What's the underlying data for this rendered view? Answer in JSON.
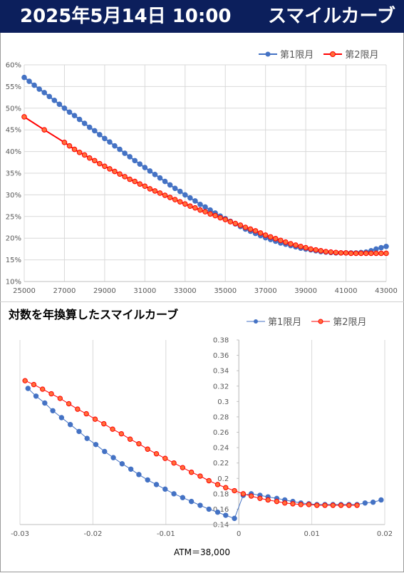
{
  "header": {
    "date": "2025年5月14日 10:00",
    "title": "スマイルカーブ"
  },
  "chart2_title": "対数を年換算したスマイルカーブ",
  "atm_label": "ATM＝38,000",
  "colors": {
    "series1": "#4472c4",
    "series2": "#ff0000",
    "series2_fill": "#ff6f3a",
    "header_bg": "#0c1f5c"
  },
  "chart_data": [
    {
      "type": "line",
      "title": "",
      "legend_position": "top-right",
      "grid": true,
      "x_ticks": [
        "25000",
        "27000",
        "29000",
        "31000",
        "33000",
        "35000",
        "37000",
        "39000",
        "41000",
        "43000"
      ],
      "y_ticks": [
        "10%",
        "15%",
        "20%",
        "25%",
        "30%",
        "35%",
        "40%",
        "45%",
        "50%",
        "55%",
        "60%"
      ],
      "xlim": [
        25000,
        43000
      ],
      "ylim": [
        10,
        60
      ],
      "series": [
        {
          "name": "第1限月",
          "x": [
            25000,
            25250,
            25500,
            25750,
            26000,
            26250,
            26500,
            26750,
            27000,
            27250,
            27500,
            27750,
            28000,
            28250,
            28500,
            28750,
            29000,
            29250,
            29500,
            29750,
            30000,
            30250,
            30500,
            30750,
            31000,
            31250,
            31500,
            31750,
            32000,
            32250,
            32500,
            32750,
            33000,
            33250,
            33500,
            33750,
            34000,
            34250,
            34500,
            34750,
            35000,
            35250,
            35500,
            35750,
            36000,
            36250,
            36500,
            36750,
            37000,
            37250,
            37500,
            37750,
            38000,
            38250,
            38500,
            38750,
            39000,
            39250,
            39500,
            39750,
            40000,
            40250,
            40500,
            40750,
            41000,
            41250,
            41500,
            41750,
            42000,
            42250,
            42500,
            42750,
            43000
          ],
          "values": [
            57.1,
            56.2,
            55.3,
            54.4,
            53.6,
            52.7,
            51.8,
            50.9,
            50.0,
            49.1,
            48.3,
            47.4,
            46.5,
            45.6,
            44.8,
            43.9,
            43.0,
            42.2,
            41.3,
            40.5,
            39.6,
            38.8,
            37.9,
            37.1,
            36.3,
            35.5,
            34.7,
            33.9,
            33.1,
            32.3,
            31.5,
            30.8,
            30.0,
            29.3,
            28.6,
            27.8,
            27.2,
            26.5,
            25.8,
            25.1,
            24.5,
            23.9,
            23.3,
            22.7,
            22.1,
            21.6,
            21.1,
            20.6,
            20.1,
            19.7,
            19.3,
            18.9,
            18.6,
            18.3,
            18.0,
            17.7,
            17.5,
            17.3,
            17.1,
            16.9,
            16.8,
            16.7,
            16.6,
            16.6,
            16.6,
            16.6,
            16.6,
            16.7,
            16.8,
            17.1,
            17.5,
            17.8,
            18.1
          ]
        },
        {
          "name": "第2限月",
          "x": [
            25000,
            26000,
            27000,
            27250,
            27500,
            27750,
            28000,
            28250,
            28500,
            28750,
            29000,
            29250,
            29500,
            29750,
            30000,
            30250,
            30500,
            30750,
            31000,
            31250,
            31500,
            31750,
            32000,
            32250,
            32500,
            32750,
            33000,
            33250,
            33500,
            33750,
            34000,
            34250,
            34500,
            34750,
            35000,
            35250,
            35500,
            35750,
            36000,
            36250,
            36500,
            36750,
            37000,
            37250,
            37500,
            37750,
            38000,
            38250,
            38500,
            38750,
            39000,
            39250,
            39500,
            39750,
            40000,
            40250,
            40500,
            40750,
            41000,
            41250,
            41500,
            41750,
            42000,
            42250,
            42500,
            42750,
            43000
          ],
          "values": [
            48.0,
            45.0,
            42.1,
            41.3,
            40.5,
            39.8,
            39.2,
            38.5,
            37.9,
            37.2,
            36.6,
            36.0,
            35.4,
            34.8,
            34.2,
            33.6,
            33.1,
            32.5,
            32.0,
            31.4,
            30.9,
            30.4,
            29.9,
            29.4,
            28.9,
            28.4,
            27.9,
            27.4,
            27.0,
            26.5,
            26.1,
            25.6,
            25.2,
            24.7,
            24.3,
            23.8,
            23.4,
            23.0,
            22.5,
            22.1,
            21.7,
            21.2,
            20.7,
            20.3,
            19.9,
            19.5,
            19.1,
            18.7,
            18.4,
            18.1,
            17.8,
            17.5,
            17.3,
            17.1,
            16.9,
            16.8,
            16.7,
            16.6,
            16.6,
            16.5,
            16.5,
            16.5,
            16.5,
            16.5,
            16.5,
            16.5,
            16.5
          ]
        }
      ]
    },
    {
      "type": "scatter",
      "title": "対数を年換算したスマイルカーブ",
      "xlabel": "ATM＝38,000",
      "legend_position": "top-right",
      "grid": true,
      "x_ticks": [
        "-0.03",
        "-0.02",
        "-0.01",
        "0",
        "0.01",
        "0.02"
      ],
      "y_ticks": [
        "0.14",
        "0.16",
        "0.18",
        "0.2",
        "0.22",
        "0.24",
        "0.26",
        "0.28",
        "0.3",
        "0.32",
        "0.34",
        "0.36",
        "0.38"
      ],
      "xlim": [
        -0.03,
        0.02
      ],
      "ylim": [
        0.14,
        0.38
      ],
      "series": [
        {
          "name": "第1限月",
          "x": [
            -0.0289,
            -0.0278,
            -0.0266,
            -0.0255,
            -0.0243,
            -0.0231,
            -0.0219,
            -0.0208,
            -0.0196,
            -0.0184,
            -0.0172,
            -0.016,
            -0.0148,
            -0.0137,
            -0.0125,
            -0.0113,
            -0.0101,
            -0.0089,
            -0.0077,
            -0.0065,
            -0.0053,
            -0.0041,
            -0.0029,
            -0.0018,
            -0.0006,
            0.0006,
            0.0017,
            0.0029,
            0.004,
            0.0052,
            0.0063,
            0.0074,
            0.0085,
            0.0096,
            0.0107,
            0.0118,
            0.0129,
            0.014,
            0.0151,
            0.0162,
            0.0173,
            0.0184,
            0.0195
          ],
          "values": [
            0.317,
            0.307,
            0.298,
            0.288,
            0.279,
            0.27,
            0.261,
            0.252,
            0.244,
            0.235,
            0.227,
            0.219,
            0.212,
            0.205,
            0.198,
            0.192,
            0.186,
            0.18,
            0.175,
            0.17,
            0.165,
            0.16,
            0.156,
            0.152,
            0.148,
            0.178,
            0.18,
            0.178,
            0.176,
            0.174,
            0.172,
            0.17,
            0.168,
            0.167,
            0.166,
            0.166,
            0.166,
            0.166,
            0.166,
            0.166,
            0.168,
            0.169,
            0.172
          ]
        },
        {
          "name": "第2限月",
          "x": [
            -0.0293,
            -0.0281,
            -0.0269,
            -0.0257,
            -0.0245,
            -0.0233,
            -0.0221,
            -0.0209,
            -0.0197,
            -0.0185,
            -0.0173,
            -0.0161,
            -0.0149,
            -0.0137,
            -0.0125,
            -0.0113,
            -0.0101,
            -0.0089,
            -0.0077,
            -0.0065,
            -0.0053,
            -0.0041,
            -0.0029,
            -0.0018,
            -0.0006,
            0.0006,
            0.0017,
            0.0029,
            0.004,
            0.0052,
            0.0063,
            0.0074,
            0.0085,
            0.0096,
            0.0107,
            0.0118,
            0.0129,
            0.014,
            0.0151,
            0.0162
          ],
          "values": [
            0.327,
            0.322,
            0.316,
            0.31,
            0.304,
            0.297,
            0.29,
            0.284,
            0.277,
            0.271,
            0.264,
            0.258,
            0.251,
            0.245,
            0.238,
            0.232,
            0.226,
            0.22,
            0.214,
            0.208,
            0.203,
            0.197,
            0.192,
            0.188,
            0.184,
            0.18,
            0.177,
            0.174,
            0.172,
            0.17,
            0.168,
            0.167,
            0.166,
            0.166,
            0.165,
            0.165,
            0.165,
            0.165,
            0.165,
            0.165
          ]
        }
      ]
    }
  ]
}
